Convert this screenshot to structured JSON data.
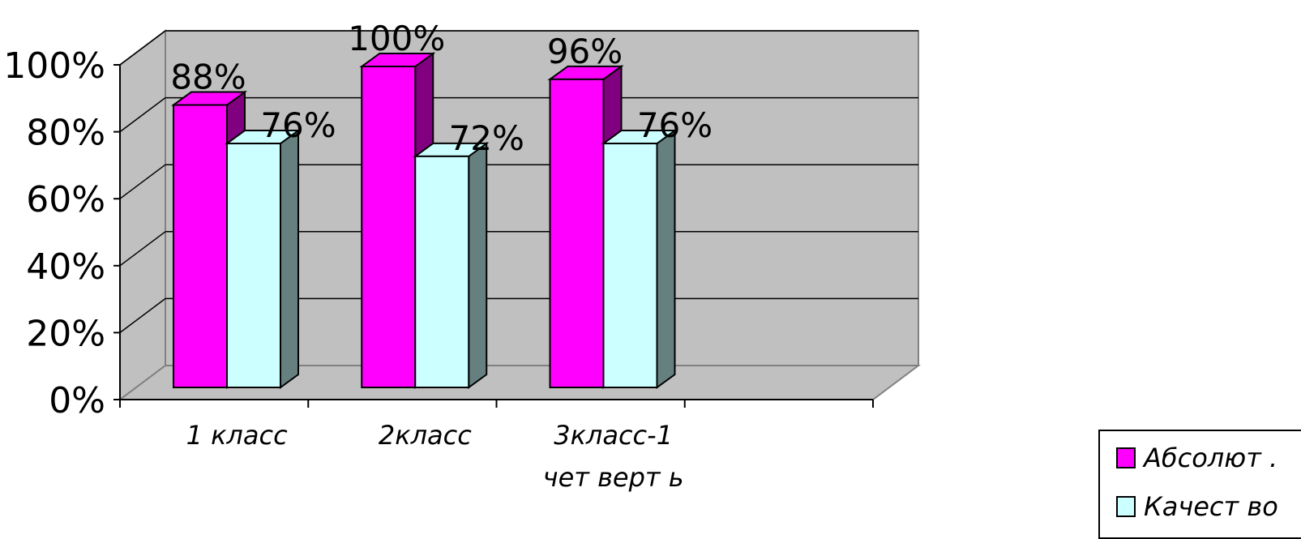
{
  "chart_data": {
    "type": "bar",
    "style": "3d-clustered-column",
    "categories": [
      "1 класс",
      "2класс",
      "3класс-1 чет верт ь"
    ],
    "category_lines": [
      [
        "1 класс"
      ],
      [
        "2класс"
      ],
      [
        "3класс-1",
        "чет верт ь"
      ]
    ],
    "series": [
      {
        "name": "Абсолют .",
        "values": [
          88,
          100,
          96
        ],
        "labels": [
          "88%",
          "100%",
          "96%"
        ],
        "color": "#ff00ff",
        "side_color": "#800080"
      },
      {
        "name": "Качест во",
        "values": [
          76,
          72,
          76
        ],
        "labels": [
          "76%",
          "72%",
          "76%"
        ],
        "color": "#ccffff",
        "side_color": "#668080"
      }
    ],
    "yticks": [
      "0%",
      "20%",
      "40%",
      "60%",
      "80%",
      "100%"
    ],
    "ylim": [
      0,
      100
    ],
    "grid": true,
    "legend": "bottom-right",
    "wall_color": "#c0c0c0"
  }
}
